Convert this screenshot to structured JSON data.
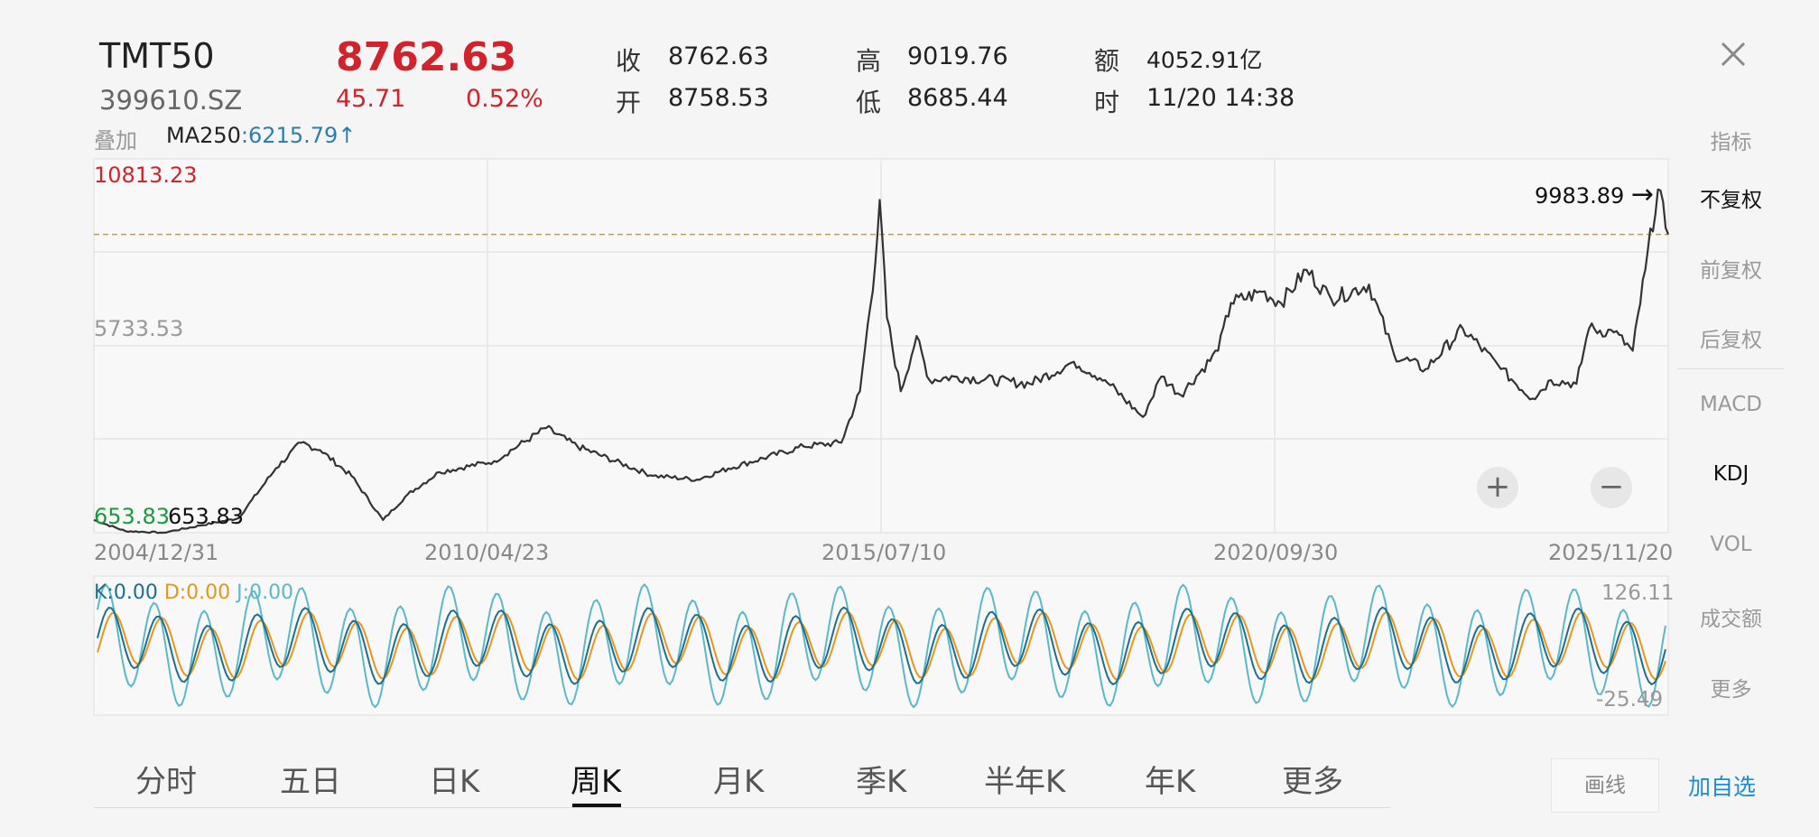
{
  "header": {
    "name": "TMT50",
    "code": "399610.SZ",
    "price": "8762.63",
    "change": "45.71",
    "change_pct": "0.52%",
    "close_label": "收",
    "close_value": "8762.63",
    "open_label": "开",
    "open_value": "8758.53",
    "high_label": "高",
    "high_value": "9019.76",
    "low_label": "低",
    "low_value": "8685.44",
    "amount_label": "额",
    "amount_value": "4052.91亿",
    "time_label": "时",
    "time_value": "11/20 14:38",
    "close_icon": "close-icon"
  },
  "overlay": {
    "label": "叠加",
    "ma_name": "MA250",
    "ma_value": ":6215.79",
    "ma_arrow": "↑"
  },
  "side_menu": {
    "indicator_label": "指标",
    "items": [
      "不复权",
      "前复权",
      "后复权",
      "MACD",
      "KDJ",
      "VOL",
      "成交额",
      "更多"
    ]
  },
  "bottom_tabs": [
    "分时",
    "五日",
    "日K",
    "周K",
    "月K",
    "季K",
    "半年K",
    "年K",
    "更多"
  ],
  "bottom_buttons": {
    "draw": "画线",
    "add_watch": "加自选"
  },
  "chart_data": [
    {
      "type": "line",
      "series_style": "weekly-k line",
      "ylim": [
        653.83,
        10813.23
      ],
      "y_labels": [
        "10813.23",
        "5733.53",
        "653.83"
      ],
      "x_ticks": [
        "2004/12/31",
        "2010/04/23",
        "2015/07/10",
        "2020/09/30",
        "2025/11/20"
      ],
      "min_marker": "653.83",
      "max_marker": "9983.89",
      "max_arrow": "→",
      "ref_line_value": 8762.63,
      "points": [
        [
          "2004/12/31",
          1000
        ],
        [
          "2005/06/01",
          700
        ],
        [
          "2005/12/01",
          654
        ],
        [
          "2006/06/01",
          850
        ],
        [
          "2006/12/01",
          1050
        ],
        [
          "2007/06/01",
          2400
        ],
        [
          "2007/10/01",
          3100
        ],
        [
          "2008/01/01",
          2900
        ],
        [
          "2008/06/01",
          2200
        ],
        [
          "2008/11/01",
          1000
        ],
        [
          "2009/03/01",
          1700
        ],
        [
          "2009/08/01",
          2300
        ],
        [
          "2010/04/23",
          2600
        ],
        [
          "2011/01/01",
          3500
        ],
        [
          "2011/06/01",
          3000
        ],
        [
          "2012/06/01",
          2200
        ],
        [
          "2013/01/01",
          2100
        ],
        [
          "2013/06/01",
          2400
        ],
        [
          "2014/06/01",
          3000
        ],
        [
          "2014/12/01",
          3100
        ],
        [
          "2015/03/01",
          4500
        ],
        [
          "2015/05/15",
          8000
        ],
        [
          "2015/06/05",
          9700
        ],
        [
          "2015/07/10",
          6500
        ],
        [
          "2015/09/15",
          4500
        ],
        [
          "2015/12/01",
          6000
        ],
        [
          "2016/02/01",
          4800
        ],
        [
          "2016/06/01",
          4900
        ],
        [
          "2017/06/01",
          4700
        ],
        [
          "2018/01/01",
          5300
        ],
        [
          "2018/06/01",
          4800
        ],
        [
          "2018/12/01",
          3800
        ],
        [
          "2019/03/01",
          4900
        ],
        [
          "2019/06/01",
          4400
        ],
        [
          "2019/12/01",
          5600
        ],
        [
          "2020/02/01",
          6900
        ],
        [
          "2020/07/01",
          7200
        ],
        [
          "2020/09/30",
          6900
        ],
        [
          "2021/02/01",
          7800
        ],
        [
          "2021/06/01",
          7000
        ],
        [
          "2021/12/01",
          7400
        ],
        [
          "2022/04/01",
          5500
        ],
        [
          "2022/09/01",
          5100
        ],
        [
          "2023/03/01",
          6200
        ],
        [
          "2023/09/01",
          5100
        ],
        [
          "2024/02/01",
          4300
        ],
        [
          "2024/05/01",
          4800
        ],
        [
          "2024/09/01",
          4700
        ],
        [
          "2024/11/01",
          6200
        ],
        [
          "2025/03/01",
          6100
        ],
        [
          "2025/06/01",
          5600
        ],
        [
          "2025/08/01",
          7800
        ],
        [
          "2025/10/01",
          9984
        ],
        [
          "2025/11/20",
          8762.63
        ]
      ]
    },
    {
      "type": "line",
      "indicator": "KDJ",
      "legend": {
        "k": "K:0.00",
        "d": "D:0.00",
        "j": "J:0.00"
      },
      "y_max_label": "126.11",
      "y_min_label": "-25.49",
      "ylim": [
        -25.49,
        126.11
      ],
      "series": [
        {
          "name": "K",
          "color": "#1d6f8f"
        },
        {
          "name": "D",
          "color": "#e8951d"
        },
        {
          "name": "J",
          "color": "#5ab8c9"
        }
      ]
    }
  ],
  "colors": {
    "accent_red": "#d0232b",
    "ma_blue": "#2a7fb0",
    "low_green": "#1b9a3c",
    "link_blue": "#1c8bd6",
    "ref_orange": "#e8951d"
  }
}
